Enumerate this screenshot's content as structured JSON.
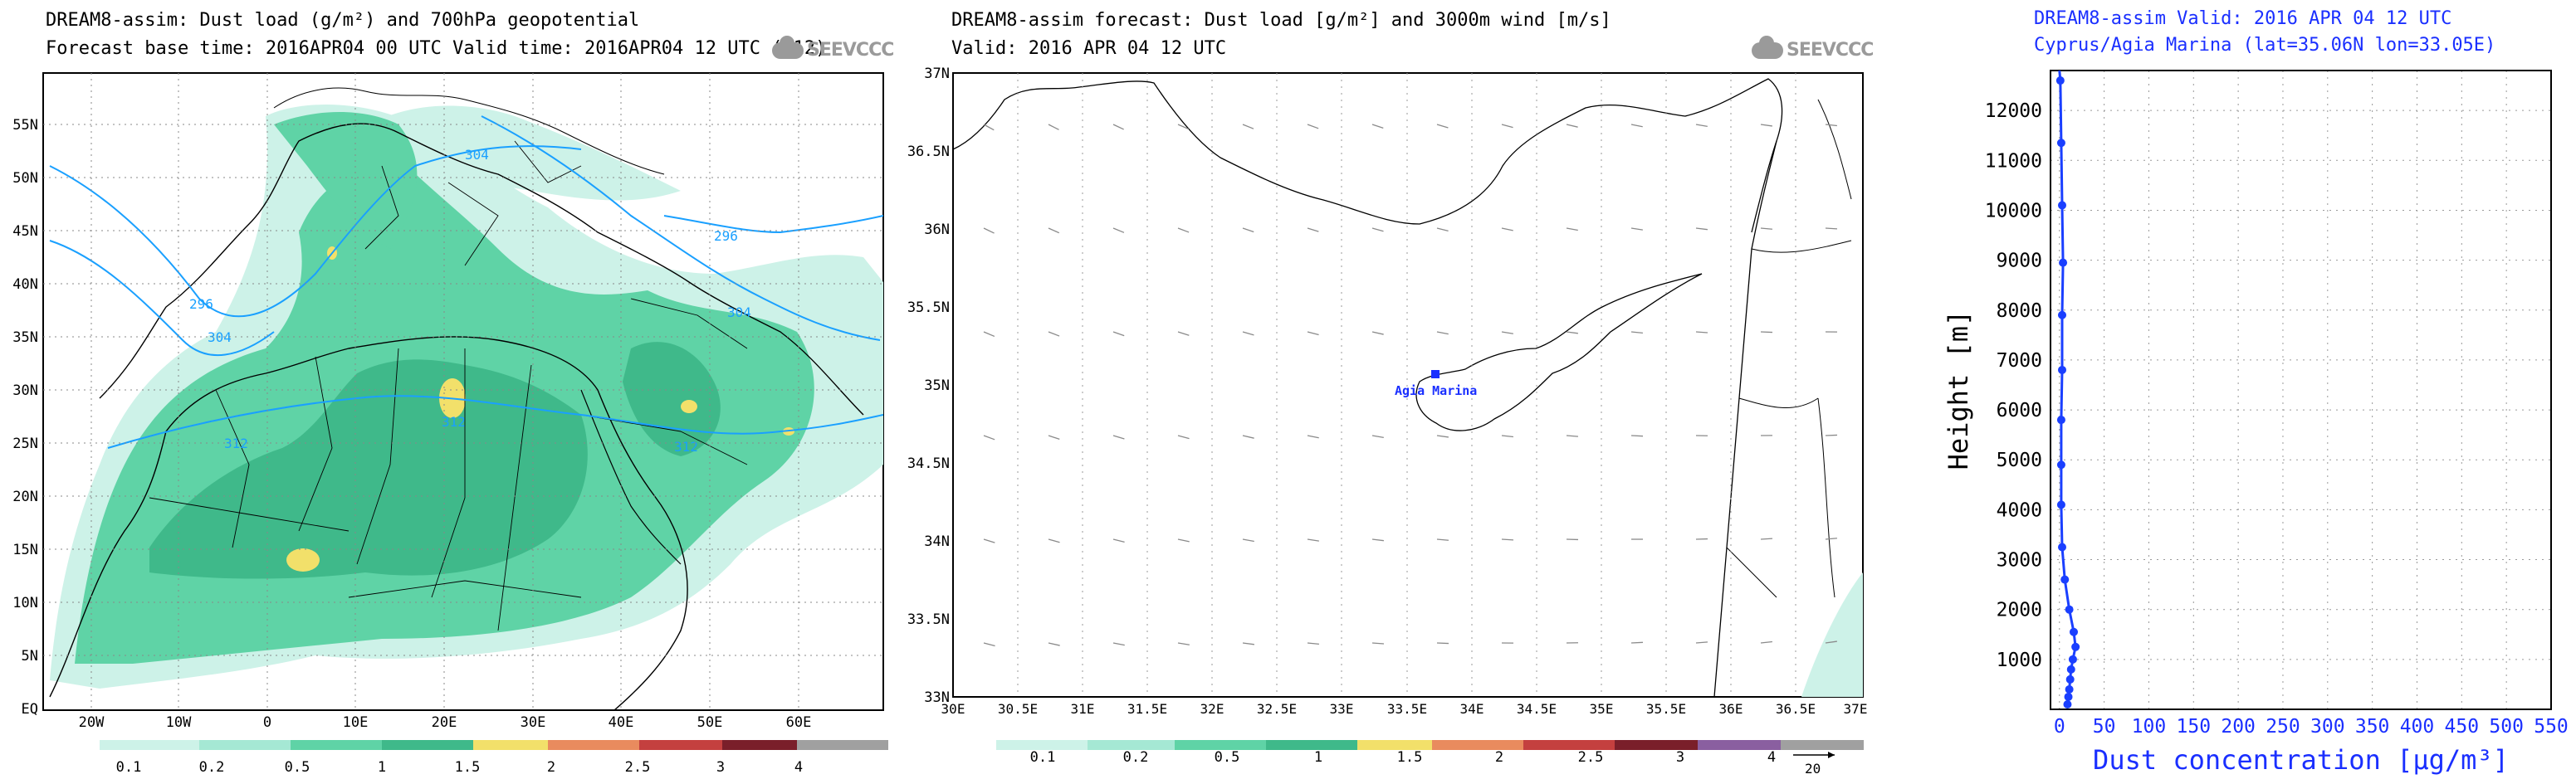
{
  "panel1": {
    "title_line1": "DREAM8-assim: Dust load (g/m²) and 700hPa geopotential",
    "title_line2": "Forecast base time: 2016APR04 00 UTC   Valid time: 2016APR04 12 UTC   (+12)",
    "logo_text": "SEEVCCC",
    "lat_labels": [
      "55N",
      "50N",
      "45N",
      "40N",
      "35N",
      "30N",
      "25N",
      "20N",
      "15N",
      "10N",
      "5N",
      "EQ"
    ],
    "lon_labels": [
      "20W",
      "10W",
      "0",
      "10E",
      "20E",
      "30E",
      "40E",
      "50E",
      "60E"
    ],
    "contour_labels": [
      "304",
      "296",
      "296",
      "304",
      "304",
      "312",
      "312",
      "312"
    ],
    "colorbar_labels": [
      "0.1",
      "0.2",
      "0.5",
      "1",
      "1.5",
      "2",
      "2.5",
      "3",
      "4"
    ],
    "colorbar_colors": [
      "#cdf2e8",
      "#a5e8d4",
      "#5fd3a6",
      "#3fb98a",
      "#f2e06a",
      "#e98b5e",
      "#c4403f",
      "#7a1f2a",
      "#8a5fa0",
      "#a0a0a0"
    ]
  },
  "panel2": {
    "title_line1": "DREAM8-assim forecast: Dust load [g/m²] and 3000m wind [m/s]",
    "title_line2": "Valid: 2016 APR 04   12 UTC",
    "logo_text": "SEEVCCC",
    "lat_labels": [
      "37N",
      "36.5N",
      "36N",
      "35.5N",
      "35N",
      "34.5N",
      "34N",
      "33.5N",
      "33N"
    ],
    "lon_labels": [
      "30E",
      "30.5E",
      "31E",
      "31.5E",
      "32E",
      "32.5E",
      "33E",
      "33.5E",
      "34E",
      "34.5E",
      "35E",
      "35.5E",
      "36E",
      "36.5E",
      "37E"
    ],
    "station_label": "Agia Marina",
    "colorbar_labels": [
      "0.1",
      "0.2",
      "0.5",
      "1",
      "1.5",
      "2",
      "2.5",
      "3",
      "4"
    ],
    "wind_ref": "20"
  },
  "chart_data": {
    "type": "line",
    "title": "DREAM8-assim   Valid: 2016 APR 04   12 UTC",
    "subtitle": "Cyprus/Agia Marina (lat=35.06N lon=33.05E)",
    "xlabel": "Dust concentration [μg/m³]",
    "ylabel": "Height [m]",
    "xlim": [
      -10,
      550
    ],
    "ylim": [
      0,
      12800
    ],
    "x_ticks": [
      0,
      50,
      100,
      150,
      200,
      250,
      300,
      350,
      400,
      450,
      500,
      550
    ],
    "y_ticks": [
      1000,
      2000,
      3000,
      4000,
      5000,
      6000,
      7000,
      8000,
      9000,
      10000,
      11000,
      12000
    ],
    "grid": "dotted",
    "line_color": "#1a3fff",
    "series": [
      {
        "x": [
          9,
          10,
          11,
          12,
          13,
          15,
          18,
          16,
          11,
          6,
          3,
          2,
          2,
          2,
          3,
          3,
          4,
          3,
          2,
          1,
          0
        ],
        "y": [
          100,
          250,
          400,
          600,
          800,
          1000,
          1250,
          1550,
          2000,
          2600,
          3250,
          4100,
          4900,
          5800,
          6800,
          7900,
          8950,
          10100,
          11350,
          12600,
          12800
        ]
      }
    ]
  }
}
